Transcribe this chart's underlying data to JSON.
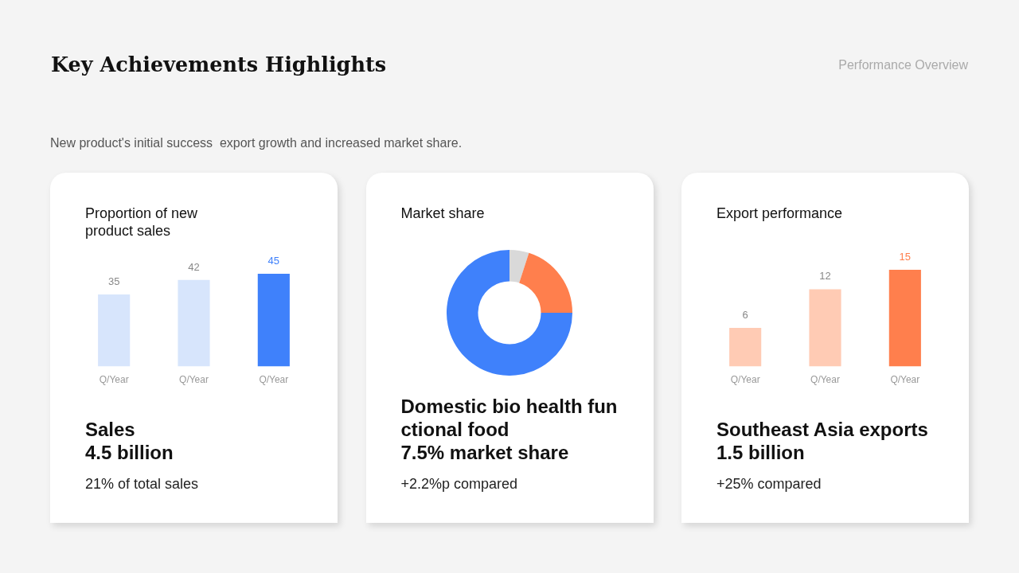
{
  "chart_data": [
    {
      "type": "other",
      "title": "Key Achievements Highlights",
      "subtitle": "New product's initial success  export growth and increased market share.",
      "annotations": [
        "Performance Overview"
      ]
    },
    {
      "type": "bar",
      "title": "Proportion of new product sales",
      "categories": [
        "Q/Year",
        "Q/Year",
        "Q/Year"
      ],
      "values": [
        35,
        42,
        45
      ],
      "colors": [
        "#d7e5fc",
        "#d7e5fc",
        "#3f81fb"
      ],
      "data_labels": true,
      "tick_labels": "x",
      "annotations": [
        "Sales\n4.5 billion",
        "21% of total sales"
      ]
    },
    {
      "type": "donut",
      "title": "Market share",
      "categories": [
        null,
        null,
        null
      ],
      "values": [
        5,
        20,
        75
      ],
      "colors": [
        "#d9d9d9",
        "#ff7f4d",
        "#3f81fb"
      ],
      "annotations": [
        "Domestic bio health functional food\n7.5% market share",
        "+2.2%p compared"
      ]
    },
    {
      "type": "bar",
      "title": "Export performance",
      "categories": [
        "Q/Year",
        "Q/Year",
        "Q/Year"
      ],
      "values": [
        6,
        12,
        15
      ],
      "colors": [
        "#ffcbb4",
        "#ffcbb4",
        "#ff7f4d"
      ],
      "data_labels": true,
      "tick_labels": "x",
      "annotations": [
        "Southeast Asia exports\n1.5 billion",
        "+25% compared"
      ]
    }
  ]
}
